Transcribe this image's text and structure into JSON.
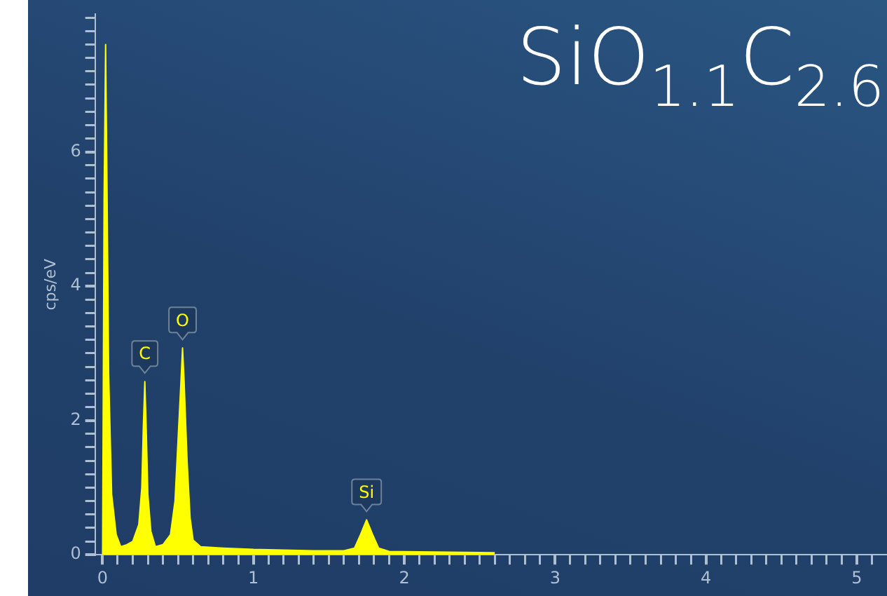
{
  "chart_data": {
    "type": "area",
    "title": "SiO$_{1.1}$C$_{2.6}$",
    "ylabel": "cps/eV",
    "x": [
      0,
      0.01,
      0.02,
      0.03,
      0.04,
      0.06,
      0.09,
      0.12,
      0.16,
      0.2,
      0.24,
      0.26,
      0.27,
      0.28,
      0.29,
      0.3,
      0.32,
      0.35,
      0.4,
      0.45,
      0.48,
      0.5,
      0.52,
      0.53,
      0.54,
      0.56,
      0.58,
      0.6,
      0.65,
      0.8,
      1.0,
      1.2,
      1.4,
      1.6,
      1.67,
      1.71,
      1.75,
      1.79,
      1.83,
      1.9,
      2.2,
      2.6
    ],
    "series": [
      {
        "color": "#ffff00",
        "values": [
          0,
          5.3,
          7.6,
          5.3,
          2.7,
          0.9,
          0.3,
          0.12,
          0.15,
          0.2,
          0.45,
          1.0,
          1.9,
          2.58,
          1.8,
          0.9,
          0.35,
          0.12,
          0.15,
          0.3,
          0.8,
          1.7,
          2.6,
          3.08,
          2.6,
          1.4,
          0.55,
          0.22,
          0.12,
          0.1,
          0.08,
          0.07,
          0.06,
          0.06,
          0.1,
          0.3,
          0.52,
          0.3,
          0.1,
          0.05,
          0.04,
          0.03
        ]
      }
    ],
    "annotations": [
      {
        "text": "C",
        "x": 0.28,
        "y": 2.58
      },
      {
        "text": "O",
        "x": 0.53,
        "y": 3.08
      },
      {
        "text": "Si",
        "x": 1.75,
        "y": 0.52
      }
    ],
    "xlim": [
      -0.05,
      5.2
    ],
    "xticks": [
      0,
      {
        "value": 0.1,
        "label": null
      },
      {
        "value": 0.2,
        "label": null
      },
      {
        "value": 0.3,
        "label": null
      },
      {
        "value": 0.4,
        "label": null
      },
      {
        "value": 0.5,
        "label": null
      },
      {
        "value": 0.6,
        "label": null
      },
      {
        "value": 0.7,
        "label": null
      },
      {
        "value": 0.8,
        "label": null
      },
      {
        "value": 0.9,
        "label": null
      },
      1,
      {
        "value": 1.1,
        "label": null
      },
      {
        "value": 1.2,
        "label": null
      },
      {
        "value": 1.3,
        "label": null
      },
      {
        "value": 1.4,
        "label": null
      },
      {
        "value": 1.5,
        "label": null
      },
      {
        "value": 1.6,
        "label": null
      },
      {
        "value": 1.7,
        "label": null
      },
      {
        "value": 1.8,
        "label": null
      },
      {
        "value": 1.9,
        "label": null
      },
      2,
      {
        "value": 2.1,
        "label": null
      },
      {
        "value": 2.2,
        "label": null
      },
      {
        "value": 2.3,
        "label": null
      },
      {
        "value": 2.4,
        "label": null
      },
      {
        "value": 2.5,
        "label": null
      },
      {
        "value": 2.6,
        "label": null
      },
      {
        "value": 2.7,
        "label": null
      },
      {
        "value": 2.8,
        "label": null
      },
      {
        "value": 2.9,
        "label": null
      },
      3,
      {
        "value": 3.1,
        "label": null
      },
      {
        "value": 3.2,
        "label": null
      },
      {
        "value": 3.3,
        "label": null
      },
      {
        "value": 3.4,
        "label": null
      },
      {
        "value": 3.5,
        "label": null
      },
      {
        "value": 3.6,
        "label": null
      },
      {
        "value": 3.7,
        "label": null
      },
      {
        "value": 3.8,
        "label": null
      },
      {
        "value": 3.9,
        "label": null
      },
      4,
      {
        "value": 4.1,
        "label": null
      },
      {
        "value": 4.2,
        "label": null
      },
      {
        "value": 4.3,
        "label": null
      },
      {
        "value": 4.4,
        "label": null
      },
      {
        "value": 4.5,
        "label": null
      },
      {
        "value": 4.6,
        "label": null
      },
      {
        "value": 4.7,
        "label": null
      },
      {
        "value": 4.8,
        "label": null
      },
      {
        "value": 4.9,
        "label": null
      },
      5,
      {
        "value": 5.1,
        "label": null
      }
    ],
    "ylim": [
      0,
      8.05
    ],
    "yticks": [
      0,
      {
        "value": 0.2,
        "label": null
      },
      {
        "value": 0.4,
        "label": null
      },
      {
        "value": 0.6,
        "label": null
      },
      {
        "value": 0.8,
        "label": null
      },
      {
        "value": 1,
        "label": null
      },
      {
        "value": 1.2,
        "label": null
      },
      {
        "value": 1.4,
        "label": null
      },
      {
        "value": 1.6,
        "label": null
      },
      {
        "value": 1.8,
        "label": null
      },
      2,
      {
        "value": 2.2,
        "label": null
      },
      {
        "value": 2.4,
        "label": null
      },
      {
        "value": 2.6,
        "label": null
      },
      {
        "value": 2.8,
        "label": null
      },
      {
        "value": 3,
        "label": null
      },
      {
        "value": 3.2,
        "label": null
      },
      {
        "value": 3.4,
        "label": null
      },
      {
        "value": 3.6,
        "label": null
      },
      {
        "value": 3.8,
        "label": null
      },
      4,
      {
        "value": 4.2,
        "label": null
      },
      {
        "value": 4.4,
        "label": null
      },
      {
        "value": 4.6,
        "label": null
      },
      {
        "value": 4.8,
        "label": null
      },
      {
        "value": 5,
        "label": null
      },
      {
        "value": 5.2,
        "label": null
      },
      {
        "value": 5.4,
        "label": null
      },
      {
        "value": 5.6,
        "label": null
      },
      {
        "value": 5.8,
        "label": null
      },
      6,
      {
        "value": 6.2,
        "label": null
      },
      {
        "value": 6.4,
        "label": null
      },
      {
        "value": 6.6,
        "label": null
      },
      {
        "value": 6.8,
        "label": null
      },
      {
        "value": 7,
        "label": null
      },
      {
        "value": 7.2,
        "label": null
      },
      {
        "value": 7.4,
        "label": null
      },
      {
        "value": 7.6,
        "label": null
      },
      {
        "value": 7.8,
        "label": null
      },
      {
        "value": 8,
        "label": null
      }
    ],
    "grid": false,
    "legend": false,
    "marker": "none",
    "line_style": "solid"
  }
}
